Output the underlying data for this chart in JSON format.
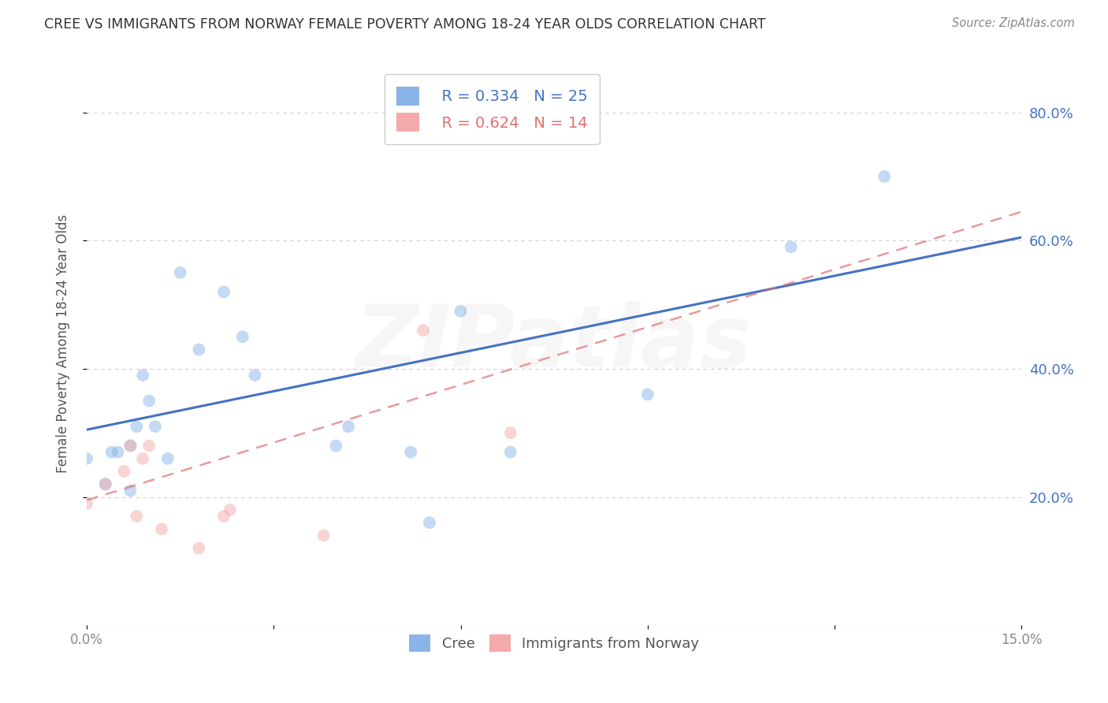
{
  "title": "CREE VS IMMIGRANTS FROM NORWAY FEMALE POVERTY AMONG 18-24 YEAR OLDS CORRELATION CHART",
  "source": "Source: ZipAtlas.com",
  "ylabel": "Female Poverty Among 18-24 Year Olds",
  "xlim": [
    0.0,
    0.15
  ],
  "ylim": [
    0.0,
    0.88
  ],
  "xticks": [
    0.0,
    0.03,
    0.06,
    0.09,
    0.12,
    0.15
  ],
  "xtick_labels": [
    "0.0%",
    "",
    "",
    "",
    "",
    "15.0%"
  ],
  "ytick_labels_right": [
    "20.0%",
    "40.0%",
    "60.0%",
    "80.0%"
  ],
  "yticks_right": [
    0.2,
    0.4,
    0.6,
    0.8
  ],
  "background_color": "#ffffff",
  "grid_color": "#d0d0d0",
  "title_color": "#333333",
  "cree_color": "#8ab4e8",
  "norway_color": "#f4aaaa",
  "cree_line_color": "#4472c4",
  "norway_line_color": "#e07070",
  "legend_R_cree": "R = 0.334",
  "legend_N_cree": "N = 25",
  "legend_R_norway": "R = 0.624",
  "legend_N_norway": "N = 14",
  "right_label_color": "#4472c4",
  "cree_points_x": [
    0.0,
    0.003,
    0.004,
    0.005,
    0.007,
    0.007,
    0.008,
    0.009,
    0.01,
    0.011,
    0.013,
    0.015,
    0.018,
    0.022,
    0.025,
    0.027,
    0.04,
    0.042,
    0.052,
    0.055,
    0.06,
    0.068,
    0.09,
    0.113,
    0.128
  ],
  "cree_points_y": [
    0.26,
    0.22,
    0.27,
    0.27,
    0.21,
    0.28,
    0.31,
    0.39,
    0.35,
    0.31,
    0.26,
    0.55,
    0.43,
    0.52,
    0.45,
    0.39,
    0.28,
    0.31,
    0.27,
    0.16,
    0.49,
    0.27,
    0.36,
    0.59,
    0.7
  ],
  "norway_points_x": [
    0.0,
    0.003,
    0.006,
    0.007,
    0.008,
    0.009,
    0.01,
    0.012,
    0.018,
    0.022,
    0.023,
    0.038,
    0.054,
    0.068
  ],
  "norway_points_y": [
    0.19,
    0.22,
    0.24,
    0.28,
    0.17,
    0.26,
    0.28,
    0.15,
    0.12,
    0.17,
    0.18,
    0.14,
    0.46,
    0.3
  ],
  "cree_trendline_x": [
    0.0,
    0.15
  ],
  "cree_trendline_y": [
    0.305,
    0.605
  ],
  "norway_trendline_x": [
    0.0,
    0.15
  ],
  "norway_trendline_y": [
    0.195,
    0.645
  ],
  "marker_size": 130,
  "marker_alpha": 0.5,
  "watermark_text": "ZIPatlas",
  "watermark_alpha": 0.07
}
